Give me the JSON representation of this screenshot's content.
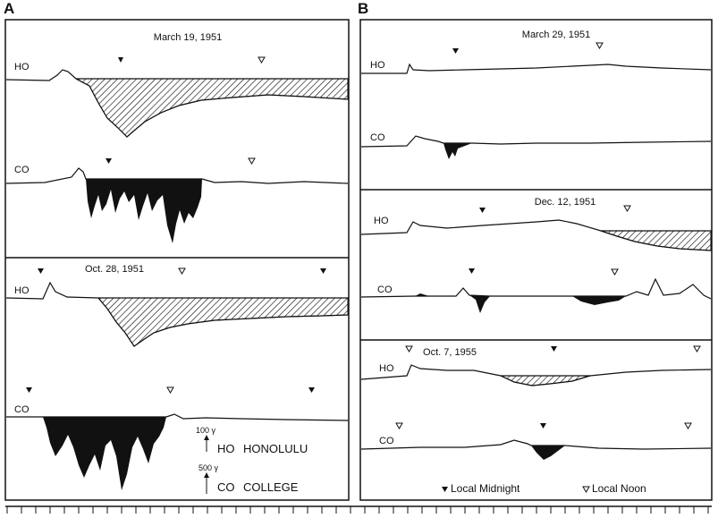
{
  "panels": {
    "a_letter": "A",
    "b_letter": "B"
  },
  "events": {
    "a1_date": "March 19, 1951",
    "a2_date": "Oct. 28, 1951",
    "b1_date": "March 29, 1951",
    "b2_date": "Dec. 12, 1951",
    "b3_date": "Oct. 7, 1955"
  },
  "stations": {
    "ho_abbr": "HO",
    "co_abbr": "CO",
    "ho_name": "HONOLULU",
    "co_name": "COLLEGE"
  },
  "scale": {
    "ho_scale": "100 γ",
    "co_scale": "500 γ"
  },
  "legend": {
    "midnight": "Local Midnight",
    "noon": "Local Noon"
  },
  "colors": {
    "ink": "#111111",
    "background": "#ffffff"
  }
}
